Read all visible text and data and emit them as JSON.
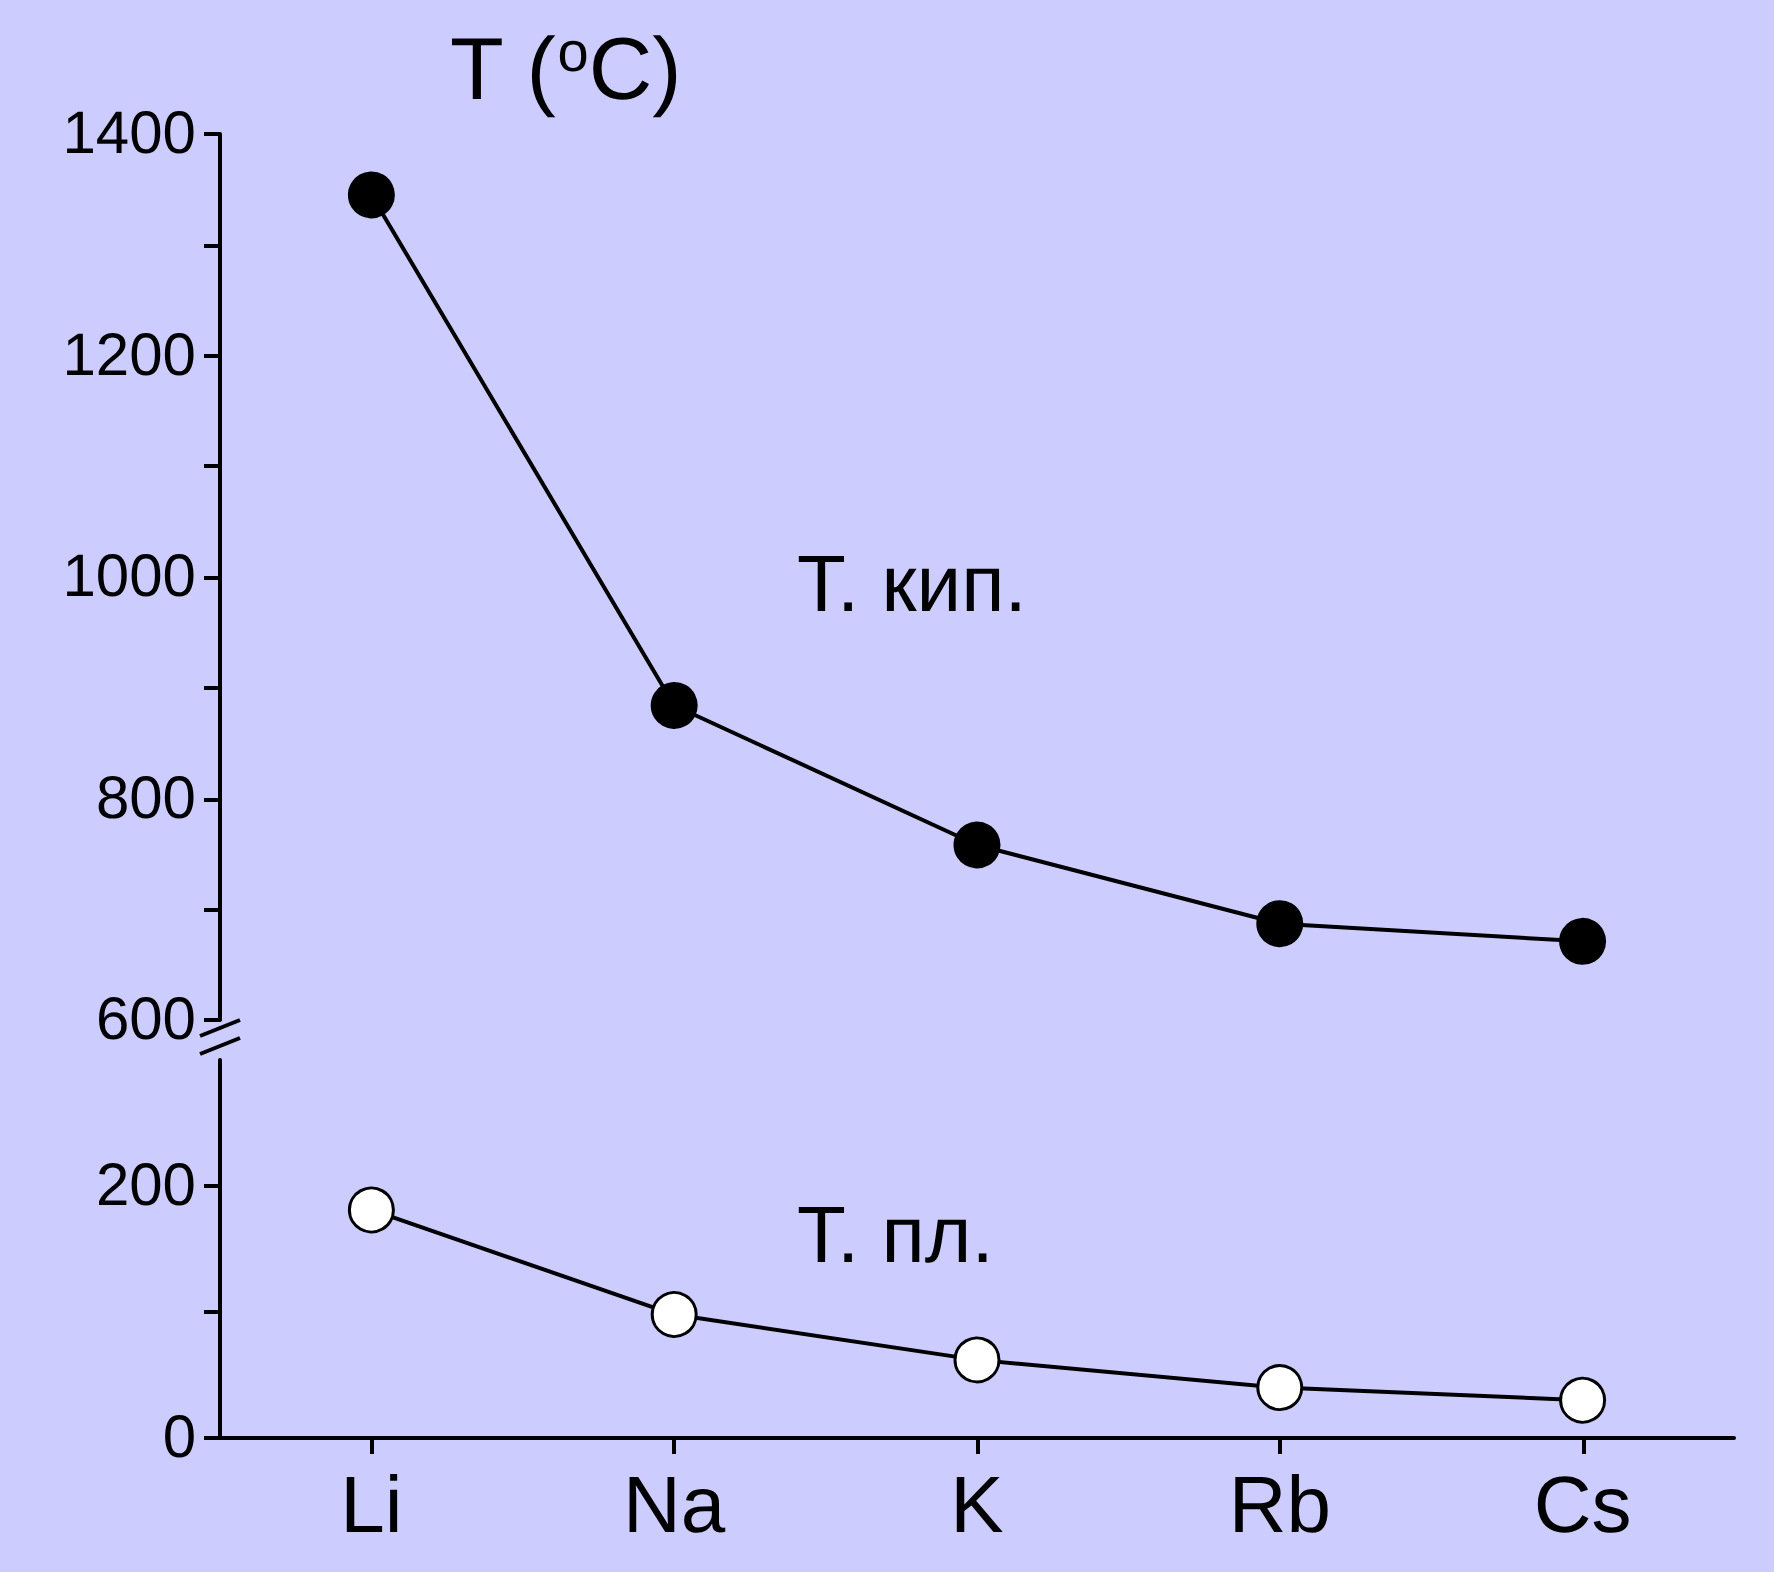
{
  "chart_data": [
    {
      "type": "line",
      "ylabel": "T ($^{o}$C)",
      "categories": [
        null,
        null,
        null,
        null,
        null
      ],
      "series": [
        {
          "name": "Т. кип.",
          "color": "#000000",
          "values": [
            1345,
            884,
            758,
            687,
            671
          ]
        }
      ],
      "ylim": [
        600,
        1400
      ],
      "yticks": [
        600,
        {
          "value": 700,
          "label": null
        },
        800,
        {
          "value": 900,
          "label": null
        },
        1000,
        {
          "value": 1100,
          "label": null
        },
        1200,
        {
          "value": 1300,
          "label": null
        },
        1400
      ],
      "tick_labels": "y",
      "marker": "circle",
      "grid": false,
      "legend": false
    },
    {
      "type": "line",
      "categories": [
        "Li",
        "Na",
        "K",
        "Rb",
        "Cs"
      ],
      "series": [
        {
          "name": "Т. пл.",
          "color": "#ffffff",
          "values": [
            181,
            98,
            62,
            40,
            30
          ]
        }
      ],
      "ylim": [
        0,
        300
      ],
      "yticks": [
        0,
        {
          "value": 100,
          "label": null
        },
        200
      ],
      "marker": "circle",
      "grid": false,
      "legend": false
    }
  ]
}
